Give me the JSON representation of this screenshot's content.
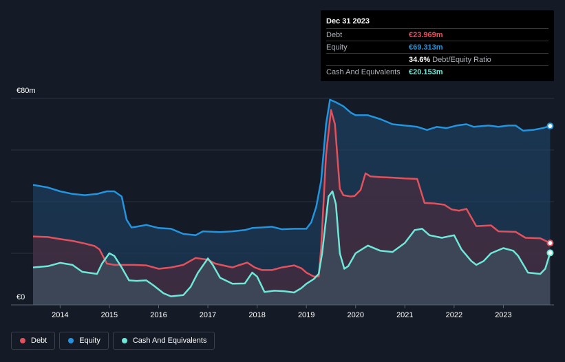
{
  "tooltip": {
    "date": "Dec 31 2023",
    "rows": [
      {
        "label": "Debt",
        "value": "€23.969m",
        "color": "#e2525c"
      },
      {
        "label": "Equity",
        "value": "€69.313m",
        "color": "#2394df"
      },
      {
        "label": "",
        "value": "34.6%",
        "suffix": "Debt/Equity Ratio",
        "color": "#ffffff"
      },
      {
        "label": "Cash And Equivalents",
        "value": "€20.153m",
        "color": "#6ee8d8"
      }
    ]
  },
  "legend": [
    {
      "label": "Debt",
      "color": "#e2525c"
    },
    {
      "label": "Equity",
      "color": "#2394df"
    },
    {
      "label": "Cash And Equivalents",
      "color": "#6ee8d8"
    }
  ],
  "chart_data": {
    "type": "area",
    "y_unit": "€m",
    "ylim": [
      0,
      80
    ],
    "xlim": [
      2013.45,
      2024.0
    ],
    "y_tick_labels": [
      {
        "value": 80,
        "label": "€80m"
      },
      {
        "value": 0,
        "label": "€0"
      }
    ],
    "x_ticks": [
      2014,
      2015,
      2016,
      2017,
      2018,
      2019,
      2020,
      2021,
      2022,
      2023
    ],
    "x_tick_labels": [
      "2014",
      "2015",
      "2016",
      "2017",
      "2018",
      "2019",
      "2020",
      "2021",
      "2022",
      "2023"
    ],
    "series": [
      {
        "name": "Equity",
        "color": "#2394df",
        "points": [
          [
            2013.45,
            46.5
          ],
          [
            2013.75,
            45.5
          ],
          [
            2014.0,
            44
          ],
          [
            2014.25,
            43
          ],
          [
            2014.5,
            42.5
          ],
          [
            2014.75,
            43
          ],
          [
            2014.95,
            44
          ],
          [
            2015.1,
            44
          ],
          [
            2015.25,
            42
          ],
          [
            2015.35,
            33
          ],
          [
            2015.45,
            30
          ],
          [
            2015.55,
            30.3
          ],
          [
            2015.75,
            31
          ],
          [
            2016.0,
            29.8
          ],
          [
            2016.25,
            29.5
          ],
          [
            2016.5,
            27.5
          ],
          [
            2016.75,
            27
          ],
          [
            2016.9,
            28.5
          ],
          [
            2017.25,
            28.2
          ],
          [
            2017.5,
            28.5
          ],
          [
            2017.75,
            29
          ],
          [
            2017.9,
            29.8
          ],
          [
            2018.1,
            30
          ],
          [
            2018.3,
            30.3
          ],
          [
            2018.5,
            29.3
          ],
          [
            2018.75,
            29.5
          ],
          [
            2019.0,
            29.5
          ],
          [
            2019.1,
            32
          ],
          [
            2019.2,
            38
          ],
          [
            2019.3,
            48
          ],
          [
            2019.4,
            70
          ],
          [
            2019.48,
            79.5
          ],
          [
            2019.6,
            78.5
          ],
          [
            2019.75,
            77
          ],
          [
            2019.9,
            74.5
          ],
          [
            2020.0,
            73.5
          ],
          [
            2020.25,
            73.5
          ],
          [
            2020.5,
            72
          ],
          [
            2020.75,
            70
          ],
          [
            2021.0,
            69.5
          ],
          [
            2021.25,
            69
          ],
          [
            2021.45,
            67.8
          ],
          [
            2021.65,
            69
          ],
          [
            2021.85,
            68.5
          ],
          [
            2022.05,
            69.5
          ],
          [
            2022.25,
            70
          ],
          [
            2022.4,
            69
          ],
          [
            2022.7,
            69.5
          ],
          [
            2022.9,
            69
          ],
          [
            2023.1,
            69.5
          ],
          [
            2023.25,
            69.5
          ],
          [
            2023.4,
            67.5
          ],
          [
            2023.6,
            67.8
          ],
          [
            2023.8,
            68.5
          ],
          [
            2023.95,
            69.313
          ]
        ]
      },
      {
        "name": "Debt",
        "color": "#e2525c",
        "points": [
          [
            2013.45,
            26.5
          ],
          [
            2013.75,
            26.3
          ],
          [
            2014.0,
            25.5
          ],
          [
            2014.25,
            24.8
          ],
          [
            2014.5,
            23.8
          ],
          [
            2014.7,
            22.8
          ],
          [
            2014.8,
            21.5
          ],
          [
            2014.95,
            16
          ],
          [
            2015.1,
            15.5
          ],
          [
            2015.5,
            15.5
          ],
          [
            2015.75,
            15.3
          ],
          [
            2016.0,
            14
          ],
          [
            2016.25,
            14.5
          ],
          [
            2016.5,
            15.5
          ],
          [
            2016.75,
            18.2
          ],
          [
            2017.0,
            17.5
          ],
          [
            2017.15,
            16
          ],
          [
            2017.5,
            14.5
          ],
          [
            2017.6,
            15.2
          ],
          [
            2017.8,
            16.4
          ],
          [
            2017.95,
            14.5
          ],
          [
            2018.1,
            13.5
          ],
          [
            2018.3,
            13.5
          ],
          [
            2018.5,
            14.5
          ],
          [
            2018.75,
            15.3
          ],
          [
            2018.9,
            14.2
          ],
          [
            2019.0,
            12.5
          ],
          [
            2019.15,
            11
          ],
          [
            2019.25,
            11
          ],
          [
            2019.3,
            22
          ],
          [
            2019.4,
            58
          ],
          [
            2019.5,
            75.5
          ],
          [
            2019.58,
            70
          ],
          [
            2019.68,
            45
          ],
          [
            2019.75,
            42.5
          ],
          [
            2019.9,
            42
          ],
          [
            2019.98,
            42.2
          ],
          [
            2020.1,
            44.5
          ],
          [
            2020.2,
            51
          ],
          [
            2020.3,
            49.8
          ],
          [
            2020.5,
            49.5
          ],
          [
            2020.75,
            49.3
          ],
          [
            2021.0,
            49
          ],
          [
            2021.25,
            48.8
          ],
          [
            2021.4,
            39.5
          ],
          [
            2021.6,
            39.3
          ],
          [
            2021.8,
            38.8
          ],
          [
            2021.95,
            37
          ],
          [
            2022.1,
            36.5
          ],
          [
            2022.25,
            37.2
          ],
          [
            2022.45,
            30.5
          ],
          [
            2022.75,
            30.8
          ],
          [
            2022.9,
            28.5
          ],
          [
            2023.25,
            28.3
          ],
          [
            2023.45,
            26
          ],
          [
            2023.75,
            25.8
          ],
          [
            2023.95,
            23.969
          ]
        ]
      },
      {
        "name": "Cash And Equivalents",
        "color": "#6ee8d8",
        "points": [
          [
            2013.45,
            14.5
          ],
          [
            2013.75,
            15
          ],
          [
            2014.0,
            16.3
          ],
          [
            2014.25,
            15.5
          ],
          [
            2014.45,
            12.8
          ],
          [
            2014.75,
            12
          ],
          [
            2014.85,
            16
          ],
          [
            2015.0,
            20
          ],
          [
            2015.1,
            19
          ],
          [
            2015.25,
            14.5
          ],
          [
            2015.4,
            9.5
          ],
          [
            2015.55,
            9.3
          ],
          [
            2015.75,
            9.5
          ],
          [
            2015.9,
            7.5
          ],
          [
            2016.1,
            4.5
          ],
          [
            2016.25,
            3.3
          ],
          [
            2016.5,
            3.8
          ],
          [
            2016.65,
            7
          ],
          [
            2016.8,
            12.5
          ],
          [
            2017.0,
            18
          ],
          [
            2017.1,
            15.5
          ],
          [
            2017.25,
            10.5
          ],
          [
            2017.5,
            8.2
          ],
          [
            2017.75,
            8.3
          ],
          [
            2017.9,
            12.5
          ],
          [
            2018.0,
            11
          ],
          [
            2018.15,
            5
          ],
          [
            2018.35,
            5.5
          ],
          [
            2018.55,
            5.3
          ],
          [
            2018.75,
            4.8
          ],
          [
            2018.9,
            6.5
          ],
          [
            2019.0,
            8.2
          ],
          [
            2019.15,
            10
          ],
          [
            2019.25,
            12
          ],
          [
            2019.32,
            20
          ],
          [
            2019.45,
            42
          ],
          [
            2019.53,
            44
          ],
          [
            2019.6,
            39
          ],
          [
            2019.68,
            20
          ],
          [
            2019.77,
            14
          ],
          [
            2019.85,
            15
          ],
          [
            2020.0,
            20
          ],
          [
            2020.25,
            23
          ],
          [
            2020.5,
            21
          ],
          [
            2020.75,
            20.5
          ],
          [
            2021.0,
            24
          ],
          [
            2021.2,
            29
          ],
          [
            2021.35,
            29.5
          ],
          [
            2021.5,
            27
          ],
          [
            2021.75,
            26
          ],
          [
            2022.0,
            27
          ],
          [
            2022.15,
            21.5
          ],
          [
            2022.35,
            17
          ],
          [
            2022.45,
            15.5
          ],
          [
            2022.6,
            17
          ],
          [
            2022.75,
            20
          ],
          [
            2023.0,
            22
          ],
          [
            2023.2,
            21
          ],
          [
            2023.3,
            19
          ],
          [
            2023.5,
            12.5
          ],
          [
            2023.75,
            12
          ],
          [
            2023.85,
            14
          ],
          [
            2023.95,
            20.153
          ]
        ]
      }
    ]
  }
}
